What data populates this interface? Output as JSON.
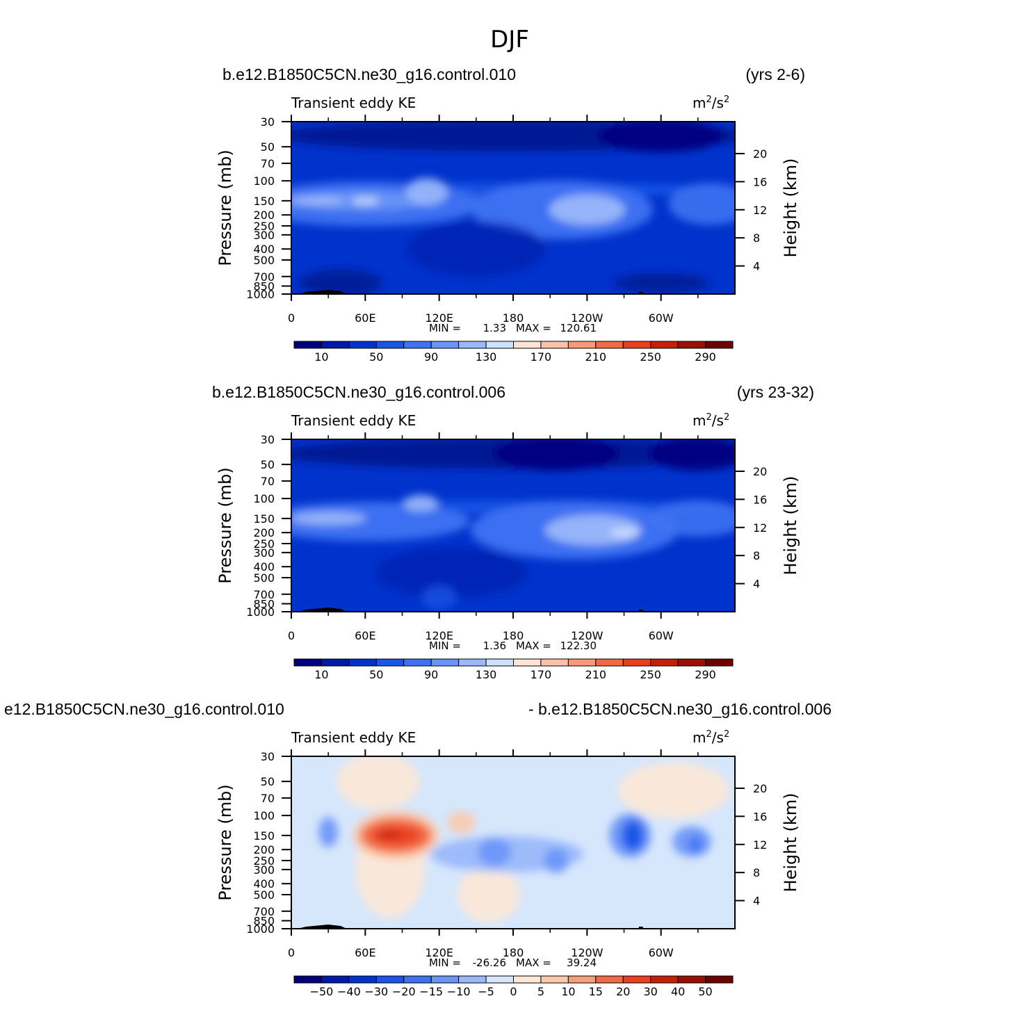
{
  "figure": {
    "title": "DJF",
    "panels": [
      {
        "case_label": "b.e12.B1850C5CN.ne30_g16.control.010",
        "right_label": "(yrs 2-6)",
        "left_subtitle": "Transient eddy KE",
        "units": "m²/s²",
        "units_base": "m",
        "units_exp": "2",
        "units_den": "/s",
        "units_den_exp": "2",
        "y_label_left": "Pressure (mb)",
        "y_label_right": "Height (km)",
        "stats": {
          "min_label": "MIN =",
          "min_value": "1.33",
          "max_label": "MAX =",
          "max_value": "120.61"
        }
      },
      {
        "case_label": "b.e12.B1850C5CN.ne30_g16.control.006",
        "right_label": "(yrs 23-32)",
        "left_subtitle": "Transient eddy KE",
        "units": "m²/s²",
        "units_base": "m",
        "units_exp": "2",
        "units_den": "/s",
        "units_den_exp": "2",
        "y_label_left": "Pressure (mb)",
        "y_label_right": "Height (km)",
        "stats": {
          "min_label": "MIN =",
          "min_value": "1.36",
          "max_label": "MAX =",
          "max_value": "122.30"
        }
      },
      {
        "case_label": "e12.B1850C5CN.ne30_g16.control.010",
        "right_label": "- b.e12.B1850C5CN.ne30_g16.control.006",
        "left_subtitle": "Transient eddy KE",
        "units": "m²/s²",
        "units_base": "m",
        "units_exp": "2",
        "units_den": "/s",
        "units_den_exp": "2",
        "y_label_left": "Pressure (mb)",
        "y_label_right": "Height (km)",
        "stats": {
          "min_label": "MIN =",
          "min_value": "-26.26",
          "max_label": "MAX =",
          "max_value": "39.24"
        }
      }
    ]
  },
  "chart_data": [
    {
      "type": "heatmap",
      "title": "b.e12.B1850C5CN.ne30_g16.control.010",
      "subtitle": "Transient eddy KE",
      "xlabel": "",
      "ylabel": "Pressure (mb)",
      "ylabel_right": "Height (km)",
      "x_ticks": [
        "0",
        "60E",
        "120E",
        "180",
        "120W",
        "60W"
      ],
      "y_ticks": [
        30,
        50,
        70,
        100,
        150,
        200,
        250,
        300,
        400,
        500,
        700,
        850,
        1000
      ],
      "y_ticks_right": [
        20,
        16,
        12,
        8,
        4
      ],
      "ylim": [
        1000,
        30
      ],
      "xlim": [
        0,
        360
      ],
      "y_scale": "log",
      "min": 1.33,
      "max": 120.61,
      "colorbar": {
        "levels": [
          10,
          50,
          90,
          130,
          170,
          210,
          250,
          290
        ]
      },
      "features": [
        {
          "region": "upper troposphere jet 150-200 mb near 20-40E",
          "value": 110
        },
        {
          "region": "upper troposphere jet 150 mb near 120E",
          "value": 110
        },
        {
          "region": "upper troposphere jet 150-200 mb near 140W",
          "value": 120
        },
        {
          "region": "stratosphere 30-50 mb",
          "value": 5
        }
      ]
    },
    {
      "type": "heatmap",
      "title": "b.e12.B1850C5CN.ne30_g16.control.006",
      "subtitle": "Transient eddy KE",
      "xlabel": "",
      "ylabel": "Pressure (mb)",
      "ylabel_right": "Height (km)",
      "x_ticks": [
        "0",
        "60E",
        "120E",
        "180",
        "120W",
        "60W"
      ],
      "y_ticks": [
        30,
        50,
        70,
        100,
        150,
        200,
        250,
        300,
        400,
        500,
        700,
        850,
        1000
      ],
      "y_ticks_right": [
        20,
        16,
        12,
        8,
        4
      ],
      "ylim": [
        1000,
        30
      ],
      "xlim": [
        0,
        360
      ],
      "y_scale": "log",
      "min": 1.36,
      "max": 122.3,
      "colorbar": {
        "levels": [
          10,
          50,
          90,
          130,
          170,
          210,
          250,
          290
        ]
      },
      "features": [
        {
          "region": "upper troposphere jet 150 mb near 20E",
          "value": 105
        },
        {
          "region": "upper troposphere jet 100-150 mb near 105E",
          "value": 105
        },
        {
          "region": "upper troposphere jet 200 mb near 100W",
          "value": 122
        },
        {
          "region": "stratosphere 30-50 mb",
          "value": 5
        }
      ]
    },
    {
      "type": "heatmap",
      "title": "e12.B1850C5CN.ne30_g16.control.010 - b.e12.B1850C5CN.ne30_g16.control.006",
      "subtitle": "Transient eddy KE",
      "xlabel": "",
      "ylabel": "Pressure (mb)",
      "ylabel_right": "Height (km)",
      "x_ticks": [
        "0",
        "60E",
        "120E",
        "180",
        "120W",
        "60W"
      ],
      "y_ticks": [
        30,
        50,
        70,
        100,
        150,
        200,
        250,
        300,
        400,
        500,
        700,
        850,
        1000
      ],
      "y_ticks_right": [
        20,
        16,
        12,
        8,
        4
      ],
      "ylim": [
        1000,
        30
      ],
      "xlim": [
        0,
        360
      ],
      "y_scale": "log",
      "min": -26.26,
      "max": 39.24,
      "colorbar": {
        "levels": [
          -50,
          -40,
          -30,
          -20,
          -15,
          -10,
          -5,
          0,
          5,
          10,
          15,
          20,
          30,
          40,
          50
        ]
      },
      "features": [
        {
          "region": "150 mb near 85E",
          "value": 39
        },
        {
          "region": "150 mb near 85W",
          "value": -26
        },
        {
          "region": "150-200 mb near 40W",
          "value": -15
        },
        {
          "region": "200 mb near 150E",
          "value": -10
        }
      ]
    }
  ]
}
